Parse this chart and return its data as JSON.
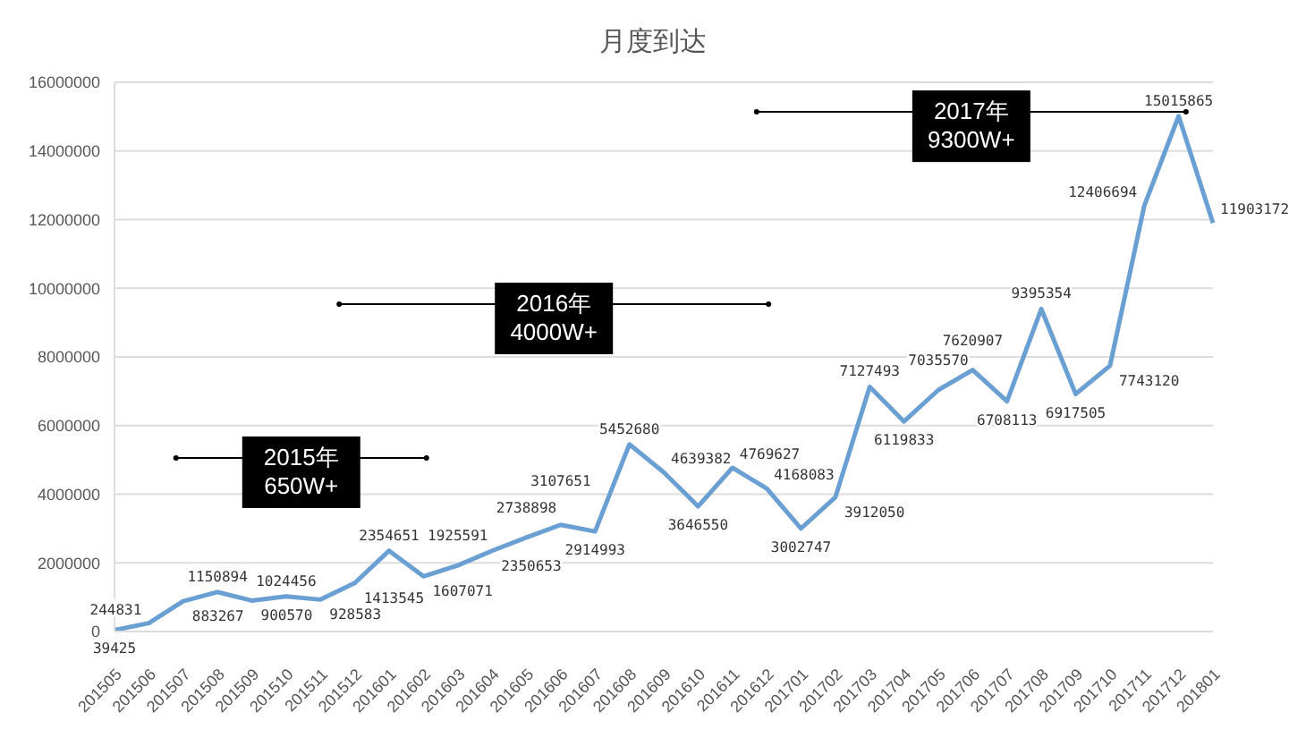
{
  "chart_data": {
    "type": "line",
    "title": "月度到达",
    "categories": [
      "201505",
      "201506",
      "201507",
      "201508",
      "201509",
      "201510",
      "201511",
      "201512",
      "201601",
      "201602",
      "201603",
      "201604",
      "201605",
      "201606",
      "201607",
      "201608",
      "201609",
      "201610",
      "201611",
      "201612",
      "201701",
      "201702",
      "201703",
      "201704",
      "201705",
      "201706",
      "201707",
      "201708",
      "201709",
      "201710",
      "201711",
      "201712",
      "201801"
    ],
    "series": [
      {
        "color": "#6a9fd4",
        "values": [
          39425,
          244831,
          883267,
          1150894,
          900570,
          1024456,
          928583,
          1413545,
          2354651,
          1607071,
          1925591,
          2350653,
          2738898,
          3107651,
          2914993,
          5452680,
          4639382,
          3646550,
          4769627,
          4168083,
          3002747,
          3912050,
          7127493,
          6119833,
          7035570,
          7620907,
          6708113,
          9395354,
          6917505,
          7743120,
          12406694,
          15015865,
          11903172
        ]
      }
    ],
    "ylim": [
      0,
      16000000
    ],
    "yticks": [
      0,
      2000000,
      4000000,
      6000000,
      8000000,
      10000000,
      12000000,
      14000000,
      16000000
    ],
    "grid": "y",
    "legend": false,
    "marker": "none",
    "line_style": "solid",
    "data_labels": true,
    "annotations": [
      "2015年\n650W+",
      "2016年\n4000W+",
      "2017年\n9300W+"
    ]
  }
}
